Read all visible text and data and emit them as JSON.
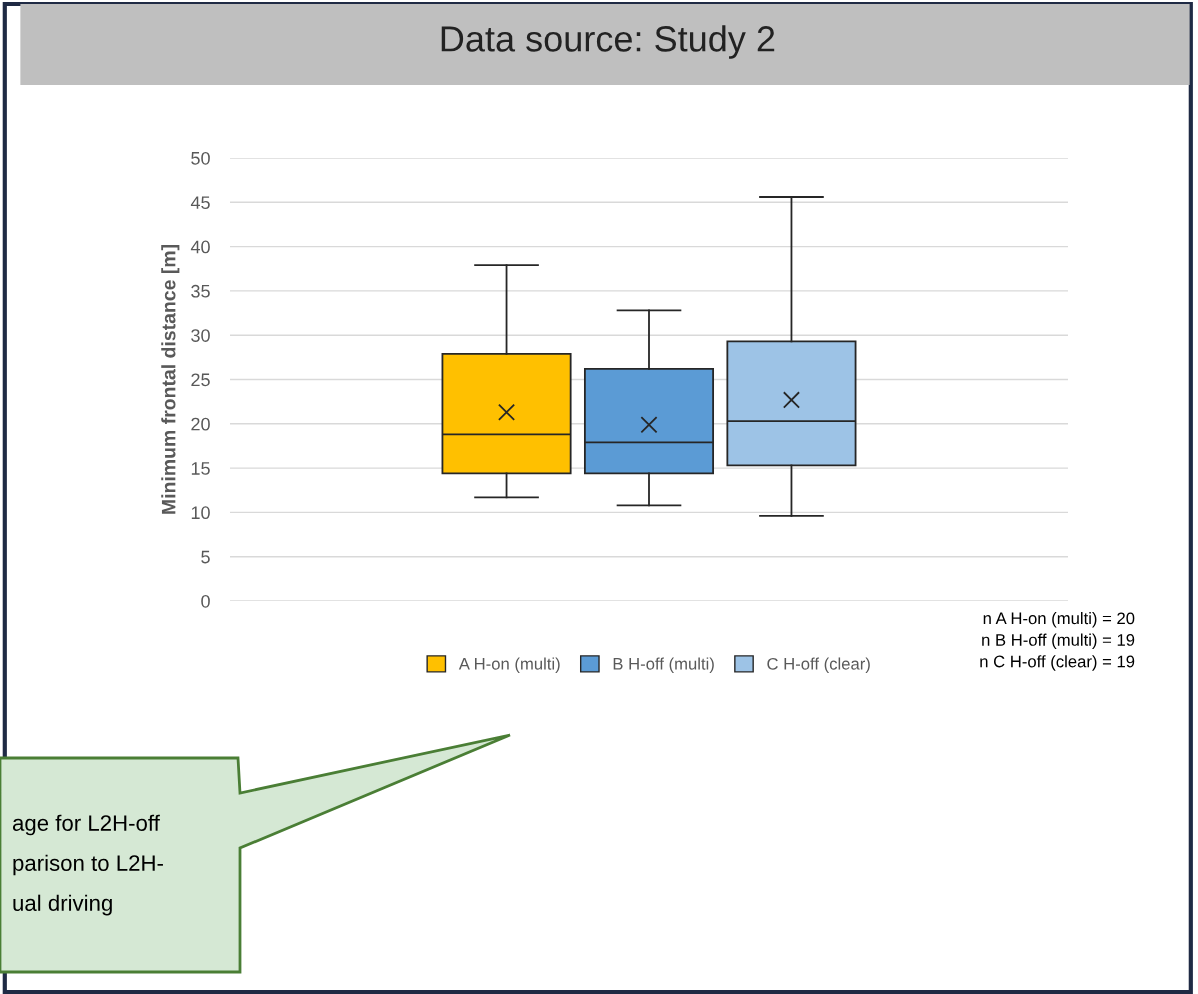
{
  "chart_data": {
    "type": "box",
    "title": "Data source: Study 2",
    "ylabel": "Minimum frontal distance [m]",
    "categories": [
      null
    ],
    "series": [
      {
        "name": "A H-on (multi)",
        "color": "#ffc000",
        "boxes": [
          {
            "low": 11.7,
            "q1": 14.4,
            "median": 18.8,
            "q3": 27.9,
            "high": 37.9,
            "mean": 21.3
          }
        ]
      },
      {
        "name": "B H-off (multi)",
        "color": "#5b9bd5",
        "boxes": [
          {
            "low": 10.8,
            "q1": 14.4,
            "median": 17.9,
            "q3": 26.2,
            "high": 32.8,
            "mean": 19.9
          }
        ]
      },
      {
        "name": "C H-off (clear)",
        "color": "#9dc3e6",
        "boxes": [
          {
            "low": 9.6,
            "q1": 15.3,
            "median": 20.3,
            "q3": 29.3,
            "high": 45.6,
            "mean": 22.7
          }
        ]
      }
    ],
    "ylim": [
      0,
      50
    ],
    "yticks": [
      0,
      5,
      10,
      15,
      20,
      25,
      30,
      35,
      40,
      45,
      50
    ],
    "grid": "y",
    "legend": "bottom",
    "tick_labels": "y",
    "annotations": [
      "n A H-on (multi) = 20\nn B H-off (multi) = 19\nn C H-off (clear) = 19",
      "age for L2H-off\nparison to L2H-\nual driving"
    ]
  }
}
